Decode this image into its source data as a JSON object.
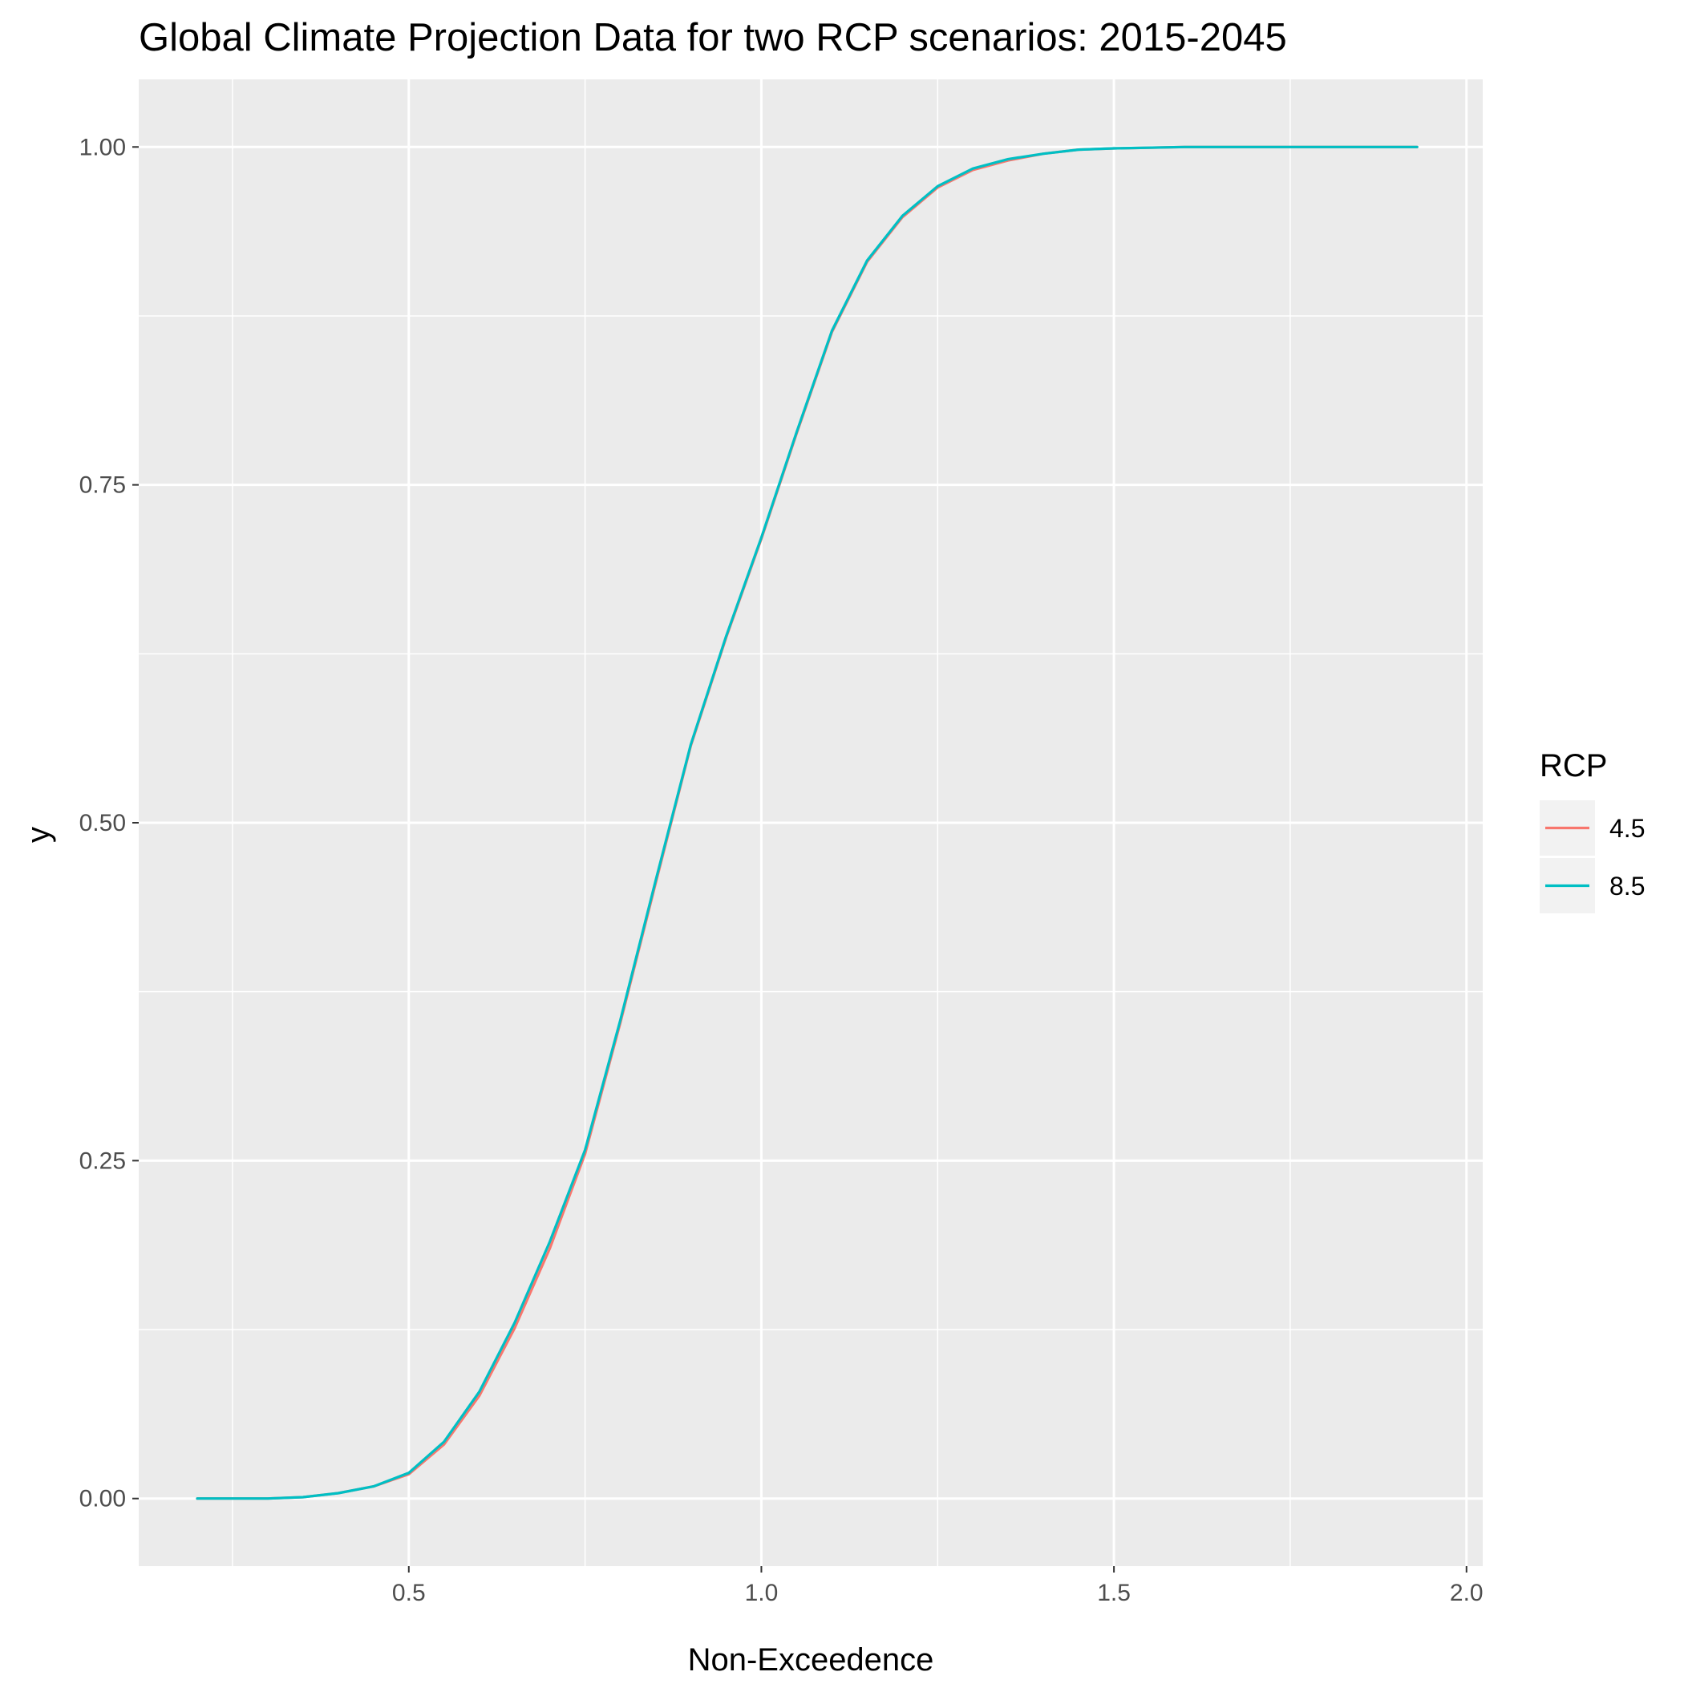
{
  "chart_data": {
    "type": "line",
    "title": "Global Climate Projection Data for two RCP scenarios: 2015-2045",
    "xlabel": "Non-Exceedence",
    "ylabel": "y",
    "xlim": [
      0.117,
      2.023
    ],
    "ylim": [
      -0.05,
      1.05
    ],
    "x_ticks": [
      0.5,
      1.0,
      1.5,
      2.0
    ],
    "x_tick_labels": [
      "0.5",
      "1.0",
      "1.5",
      "2.0"
    ],
    "x_minor_ticks": [
      0.25,
      0.75,
      1.25,
      1.75
    ],
    "y_ticks": [
      0.0,
      0.25,
      0.5,
      0.75,
      1.0
    ],
    "y_tick_labels": [
      "0.00",
      "0.25",
      "0.50",
      "0.75",
      "1.00"
    ],
    "y_minor_ticks": [
      0.125,
      0.375,
      0.625,
      0.875
    ],
    "grid": true,
    "panel_background": "#ebebeb",
    "legend": {
      "title": "RCP",
      "position": "right"
    },
    "series": [
      {
        "name": "4.5",
        "color": "#f8766d",
        "x": [
          0.2,
          0.3,
          0.35,
          0.4,
          0.45,
          0.5,
          0.55,
          0.6,
          0.65,
          0.7,
          0.75,
          0.8,
          0.85,
          0.9,
          0.95,
          1.0,
          1.05,
          1.1,
          1.15,
          1.2,
          1.25,
          1.3,
          1.35,
          1.4,
          1.45,
          1.5,
          1.6,
          1.7,
          1.8,
          1.93
        ],
        "y": [
          0.0,
          0.0,
          0.001,
          0.004,
          0.009,
          0.018,
          0.04,
          0.076,
          0.126,
          0.185,
          0.255,
          0.352,
          0.455,
          0.557,
          0.637,
          0.71,
          0.788,
          0.863,
          0.915,
          0.948,
          0.97,
          0.983,
          0.99,
          0.995,
          0.998,
          0.999,
          1.0,
          1.0,
          1.0,
          1.0
        ]
      },
      {
        "name": "8.5",
        "color": "#00bfc4",
        "x": [
          0.2,
          0.3,
          0.35,
          0.4,
          0.45,
          0.5,
          0.55,
          0.6,
          0.65,
          0.7,
          0.75,
          0.8,
          0.85,
          0.9,
          0.95,
          1.0,
          1.05,
          1.1,
          1.15,
          1.2,
          1.25,
          1.3,
          1.35,
          1.4,
          1.45,
          1.5,
          1.6,
          1.7,
          1.8,
          1.93
        ],
        "y": [
          0.0,
          0.0,
          0.001,
          0.004,
          0.009,
          0.019,
          0.042,
          0.079,
          0.13,
          0.19,
          0.258,
          0.354,
          0.457,
          0.558,
          0.638,
          0.711,
          0.789,
          0.864,
          0.916,
          0.949,
          0.971,
          0.984,
          0.991,
          0.995,
          0.998,
          0.999,
          1.0,
          1.0,
          1.0,
          1.0
        ]
      }
    ]
  }
}
